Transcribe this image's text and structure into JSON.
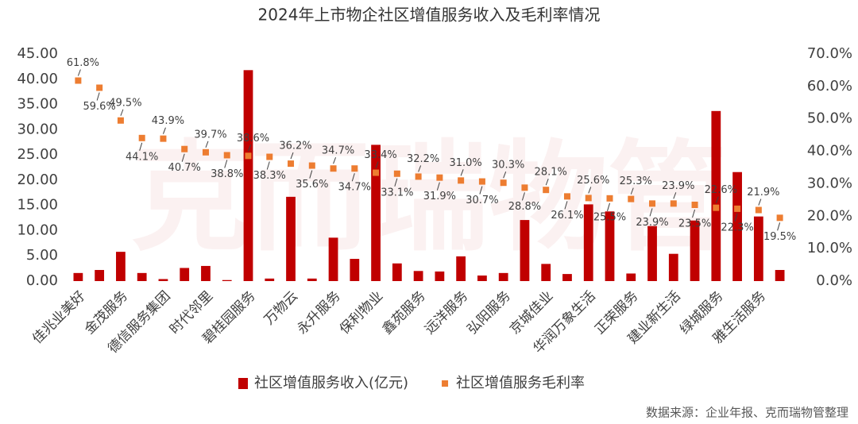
{
  "chart_data": {
    "type": "bar",
    "title": "2024年上市物企社区增值服务收入及毛利率情况",
    "watermark": "克而瑞物管",
    "source": "数据来源：企业年报、克而瑞物管整理",
    "categories": [
      "佳兆业美好",
      null,
      "金茂服务",
      null,
      "德信服务集团",
      null,
      "时代邻里",
      null,
      "碧桂园服务",
      null,
      "万物云",
      null,
      "永升服务",
      null,
      "保利物业",
      null,
      "鑫苑服务",
      null,
      "远洋服务",
      null,
      "弘阳服务",
      null,
      "京城佳业",
      null,
      "华润万象生活",
      null,
      "正荣服务",
      null,
      "建业新生活",
      null,
      "绿城服务",
      null,
      "雅生活服务",
      null
    ],
    "series": [
      {
        "name": "社区增值服务收入(亿元)",
        "type": "bar",
        "color": "#c00000",
        "values": [
          1.6,
          2.2,
          5.8,
          1.6,
          0.4,
          2.6,
          3.0,
          0.2,
          41.8,
          0.5,
          16.7,
          0.5,
          8.6,
          4.4,
          27.0,
          3.5,
          2.0,
          1.9,
          4.9,
          1.1,
          1.6,
          12.1,
          3.4,
          1.4,
          15.2,
          13.8,
          1.5,
          10.9,
          5.4,
          12.0,
          33.7,
          21.6,
          12.8,
          2.2
        ]
      },
      {
        "name": "社区增值服务毛利率",
        "type": "scatter",
        "axis": "y2",
        "color": "#ed7d31",
        "values": [
          61.8,
          59.6,
          49.5,
          44.1,
          43.9,
          40.7,
          39.7,
          38.8,
          38.6,
          38.3,
          36.2,
          35.6,
          34.7,
          34.7,
          33.4,
          33.1,
          32.2,
          31.9,
          31.0,
          30.7,
          30.3,
          28.8,
          28.1,
          26.1,
          25.6,
          25.5,
          25.3,
          23.9,
          23.9,
          23.5,
          22.6,
          22.3,
          21.9,
          19.5
        ],
        "value_labels": [
          "61.8%",
          "59.6%",
          "49.5%",
          "44.1%",
          "43.9%",
          "40.7%",
          "39.7%",
          "38.8%",
          "38.6%",
          "38.3%",
          "36.2%",
          "35.6%",
          "34.7%",
          "34.7%",
          "33.4%",
          "33.1%",
          "32.2%",
          "31.9%",
          "31.0%",
          "30.7%",
          "30.3%",
          "28.8%",
          "28.1%",
          "26.1%",
          "25.6%",
          "25.5%",
          "25.3%",
          "23.9%",
          "23.9%",
          "23.5%",
          "22.6%",
          "22.3%",
          "21.9%",
          "19.5%"
        ]
      }
    ],
    "ylim": [
      0,
      45
    ],
    "yticks": [
      {
        "value": 0,
        "label": "0.00"
      },
      {
        "value": 5,
        "label": "5.00"
      },
      {
        "value": 10,
        "label": "10.00"
      },
      {
        "value": 15,
        "label": "15.00"
      },
      {
        "value": 20,
        "label": "20.00"
      },
      {
        "value": 25,
        "label": "25.00"
      },
      {
        "value": 30,
        "label": "30.00"
      },
      {
        "value": 35,
        "label": "35.00"
      },
      {
        "value": 40,
        "label": "40.00"
      },
      {
        "value": 45,
        "label": "45.00"
      }
    ],
    "y2lim": [
      0,
      70
    ],
    "y2ticks": [
      {
        "value": 0,
        "label": "0.0%"
      },
      {
        "value": 10,
        "label": "10.0%"
      },
      {
        "value": 20,
        "label": "20.0%"
      },
      {
        "value": 30,
        "label": "30.0%"
      },
      {
        "value": 40,
        "label": "40.0%"
      },
      {
        "value": 50,
        "label": "50.0%"
      },
      {
        "value": 60,
        "label": "60.0%"
      },
      {
        "value": 70,
        "label": "70.0%"
      }
    ],
    "legend": "bottom"
  }
}
